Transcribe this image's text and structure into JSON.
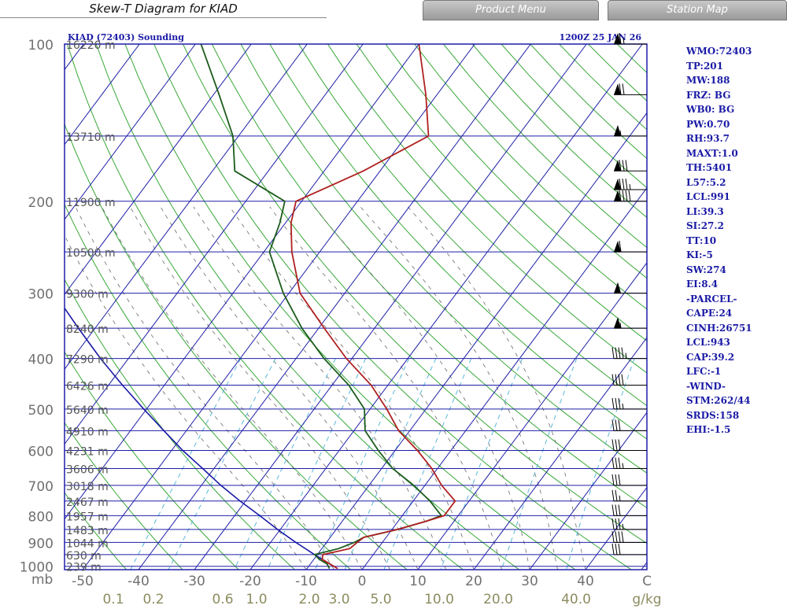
{
  "page": {
    "title": "Skew-T Diagram for KIAD",
    "buttons": [
      "Product Menu",
      "Station Map"
    ]
  },
  "chart_data": {
    "type": "line",
    "header_left": "KIAD (72403) Sounding",
    "header_right": "1200Z 25 JAN 26",
    "y_unit_label": "mb",
    "x_unit_label": "C",
    "mixing_unit_label": "g/kg",
    "pressure_levels": [
      100,
      200,
      300,
      400,
      500,
      600,
      700,
      800,
      900,
      1000
    ],
    "height_labels": [
      {
        "p": 100,
        "label": "16220 m"
      },
      {
        "p": 150,
        "label": "13710 m"
      },
      {
        "p": 200,
        "label": "11900 m"
      },
      {
        "p": 250,
        "label": "10500 m"
      },
      {
        "p": 300,
        "label": "9300 m"
      },
      {
        "p": 350,
        "label": "8240 m"
      },
      {
        "p": 400,
        "label": "7290 m"
      },
      {
        "p": 450,
        "label": "6426 m"
      },
      {
        "p": 500,
        "label": "5640 m"
      },
      {
        "p": 550,
        "label": "4910 m"
      },
      {
        "p": 600,
        "label": "4231 m"
      },
      {
        "p": 650,
        "label": "3606 m"
      },
      {
        "p": 700,
        "label": "3018 m"
      },
      {
        "p": 750,
        "label": "2467 m"
      },
      {
        "p": 800,
        "label": "1957 m"
      },
      {
        "p": 850,
        "label": "1483 m"
      },
      {
        "p": 900,
        "label": "1044 m"
      },
      {
        "p": 950,
        "label": "630 m"
      },
      {
        "p": 1000,
        "label": "239 m"
      }
    ],
    "temperature_ticks": [
      -50,
      -40,
      -30,
      -20,
      -10,
      0,
      10,
      20,
      30,
      40
    ],
    "mixing_ratio_ticks": [
      "0.1",
      "0.2",
      "0.6",
      "1.0",
      "2.0",
      "3.0",
      "5.0",
      "10.0",
      "20.0",
      "40.0"
    ],
    "temperature_profile": [
      [
        1010,
        -4.5
      ],
      [
        990,
        -6.5
      ],
      [
        970,
        -8.5
      ],
      [
        950,
        -9.0
      ],
      [
        925,
        -5.0
      ],
      [
        900,
        -4.5
      ],
      [
        880,
        -4.0
      ],
      [
        850,
        1.0
      ],
      [
        820,
        5.0
      ],
      [
        800,
        7.5
      ],
      [
        750,
        7.5
      ],
      [
        700,
        3.0
      ],
      [
        650,
        -1.0
      ],
      [
        600,
        -6.0
      ],
      [
        550,
        -12.0
      ],
      [
        500,
        -17.0
      ],
      [
        450,
        -23.0
      ],
      [
        400,
        -31.0
      ],
      [
        350,
        -39.0
      ],
      [
        300,
        -48.0
      ],
      [
        250,
        -55.0
      ],
      [
        220,
        -59.0
      ],
      [
        200,
        -61.0
      ],
      [
        175,
        -53.0
      ],
      [
        150,
        -46.0
      ],
      [
        125,
        -52.0
      ],
      [
        100,
        -60.0
      ]
    ],
    "dewpoint_profile": [
      [
        1010,
        -6.0
      ],
      [
        990,
        -7.0
      ],
      [
        970,
        -9.0
      ],
      [
        950,
        -10.5
      ],
      [
        925,
        -7.0
      ],
      [
        900,
        -5.0
      ],
      [
        880,
        -4.0
      ],
      [
        850,
        1.0
      ],
      [
        820,
        5.0
      ],
      [
        800,
        7.0
      ],
      [
        750,
        3.0
      ],
      [
        700,
        -2.0
      ],
      [
        650,
        -8.0
      ],
      [
        600,
        -13.0
      ],
      [
        550,
        -18.0
      ],
      [
        500,
        -21.0
      ],
      [
        450,
        -27.0
      ],
      [
        400,
        -35.0
      ],
      [
        350,
        -43.0
      ],
      [
        300,
        -51.0
      ],
      [
        250,
        -59.0
      ],
      [
        220,
        -61.0
      ],
      [
        200,
        -63.0
      ],
      [
        175,
        -76.0
      ],
      [
        150,
        -81.0
      ],
      [
        125,
        -89.0
      ],
      [
        100,
        -99.0
      ]
    ],
    "parcel_profile": [
      [
        1000,
        -5.5
      ],
      [
        950,
        -10.5
      ],
      [
        900,
        -15.5
      ],
      [
        850,
        -20.5
      ],
      [
        800,
        -25.5
      ],
      [
        750,
        -31.0
      ],
      [
        700,
        -36.5
      ],
      [
        650,
        -42.0
      ],
      [
        600,
        -48.0
      ],
      [
        550,
        -54.0
      ],
      [
        500,
        -60.5
      ],
      [
        450,
        -67.5
      ],
      [
        400,
        -75.0
      ],
      [
        350,
        -83.0
      ],
      [
        300,
        -92.0
      ],
      [
        250,
        -102.0
      ],
      [
        200,
        -113.0
      ],
      [
        150,
        -126.0
      ],
      [
        125,
        -134.0
      ]
    ],
    "wind_barbs": [
      {
        "p": 100,
        "speed": 65
      },
      {
        "p": 125,
        "speed": 70
      },
      {
        "p": 150,
        "speed": 55
      },
      {
        "p": 175,
        "speed": 80
      },
      {
        "p": 190,
        "speed": 85
      },
      {
        "p": 200,
        "speed": 90
      },
      {
        "p": 250,
        "speed": 60
      },
      {
        "p": 300,
        "speed": 50
      },
      {
        "p": 350,
        "speed": 55
      },
      {
        "p": 400,
        "speed": 45
      },
      {
        "p": 450,
        "speed": 40
      },
      {
        "p": 500,
        "speed": 35
      },
      {
        "p": 550,
        "speed": 30
      },
      {
        "p": 600,
        "speed": 30
      },
      {
        "p": 650,
        "speed": 35
      },
      {
        "p": 700,
        "speed": 30
      },
      {
        "p": 750,
        "speed": 25
      },
      {
        "p": 800,
        "speed": 30
      },
      {
        "p": 850,
        "speed": 35
      },
      {
        "p": 900,
        "speed": 40
      },
      {
        "p": 950,
        "speed": 30
      }
    ],
    "colors": {
      "frame": "#1f1fa8",
      "isobar": "#1f1fa8",
      "isotherm": "#1f1fa8",
      "dry_adiabat": "#38a838",
      "mixing_ratio": "#5bb8d8",
      "moist_adiabat": "#6a6a6a",
      "temperature": "#b02020",
      "dewpoint": "#1c5c1c",
      "parcel": "#1a1aa6",
      "tick_label": "#707070",
      "mixing_label": "#8c8c60",
      "header": "#1a1aa6",
      "wind": "#000000"
    }
  },
  "stats": [
    "WMO:72403",
    "TP:201",
    "MW:188",
    "FRZ: BG",
    "WB0: BG",
    "PW:0.70",
    "RH:93.7",
    "MAXT:1.0",
    "TH:5401",
    "L57:5.2",
    "LCL:991",
    "LI:39.3",
    "SI:27.2",
    "TT:10",
    "KI:-5",
    "SW:274",
    "EI:8.4",
    "-PARCEL-",
    "CAPE:24",
    "CINH:26751",
    "LCL:943",
    "CAP:39.2",
    "LFC:-1",
    "-WIND-",
    "STM:262/44",
    "SRDS:158",
    "EHI:-1.5"
  ]
}
